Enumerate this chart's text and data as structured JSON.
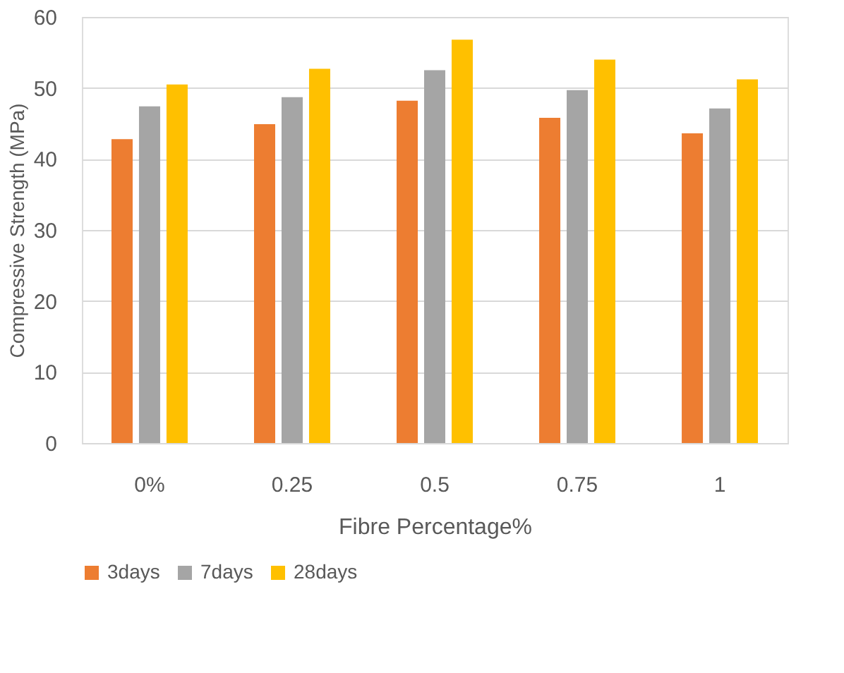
{
  "chart_data": {
    "type": "bar",
    "xlabel": "Fibre Percentage%",
    "ylabel": "Compressive Strength (MPa)",
    "categories": [
      "0%",
      "0.25",
      "0.5",
      "0.75",
      "1"
    ],
    "series": [
      {
        "name": "3days",
        "color": "#ed7d31",
        "values": [
          42.8,
          44.9,
          48.2,
          45.8,
          43.6
        ]
      },
      {
        "name": "7days",
        "color": "#a5a5a5",
        "values": [
          47.4,
          48.7,
          52.5,
          49.7,
          47.1
        ]
      },
      {
        "name": "28days",
        "color": "#ffc000",
        "values": [
          50.5,
          52.7,
          56.8,
          54.0,
          51.2
        ]
      }
    ],
    "ylim": [
      0,
      60
    ],
    "yticks": [
      0,
      10,
      20,
      30,
      40,
      50,
      60
    ],
    "grid": "y",
    "legend": "bottom"
  }
}
